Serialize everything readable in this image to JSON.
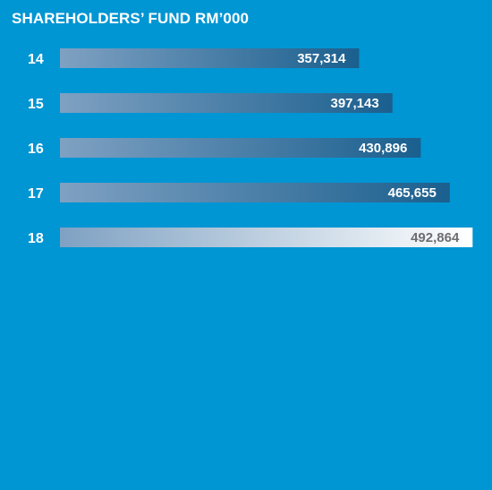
{
  "colors": {
    "background": "#0095d3",
    "bar_start": "#7fa1c2",
    "bar_end": "#1a5f8e",
    "highlight_start": "#7fa1c2",
    "highlight_end": "#ffffff",
    "label_default": "#ffffff",
    "label_highlight": "#6d6e71"
  },
  "chart_data": {
    "type": "bar",
    "orientation": "horizontal",
    "title": "SHAREHOLDERS’ FUND RM’000",
    "categories": [
      "14",
      "15",
      "16",
      "17",
      "18"
    ],
    "values": [
      357314,
      397143,
      430896,
      465655,
      492864
    ],
    "value_labels": [
      "357,314",
      "397,143",
      "430,896",
      "465,655",
      "492,864"
    ],
    "highlighted_category": "18",
    "xlim": [
      0,
      500000
    ],
    "grid": false,
    "legend": "none"
  }
}
